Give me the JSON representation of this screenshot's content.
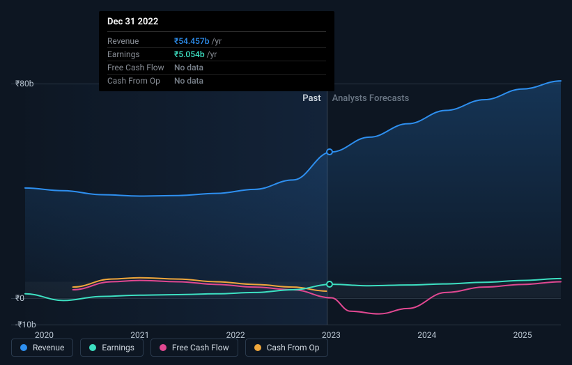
{
  "chart": {
    "background_color": "#0d1622",
    "grid_color": "#2a3644",
    "text_color": "#b8c4d0",
    "currency_prefix": "₹",
    "y_axis": {
      "ticks": [
        {
          "value": 80,
          "label": "₹80b"
        },
        {
          "value": 0,
          "label": "₹0"
        },
        {
          "value": -10,
          "label": "-₹10b"
        }
      ],
      "min": -10,
      "max": 80
    },
    "x_axis": {
      "min": 2019.8,
      "max": 2025.4,
      "ticks": [
        2020,
        2021,
        2022,
        2023,
        2024,
        2025
      ],
      "divider_at": 2022.95
    },
    "sections": {
      "past": {
        "label": "Past",
        "color": "#d4dce4"
      },
      "forecast": {
        "label": "Analysts Forecasts",
        "color": "#6a7684"
      }
    },
    "series": [
      {
        "key": "revenue",
        "label": "Revenue",
        "color": "#2e8fef",
        "line_width": 2,
        "fill_opacity": 0.15,
        "points": [
          [
            2019.8,
            41
          ],
          [
            2020.2,
            40
          ],
          [
            2020.6,
            38.5
          ],
          [
            2021.0,
            38
          ],
          [
            2021.4,
            38.2
          ],
          [
            2021.8,
            39
          ],
          [
            2022.2,
            40.5
          ],
          [
            2022.6,
            44
          ],
          [
            2023.0,
            54.457
          ],
          [
            2023.4,
            60
          ],
          [
            2023.8,
            65
          ],
          [
            2024.2,
            70
          ],
          [
            2024.6,
            74
          ],
          [
            2025.0,
            78
          ],
          [
            2025.4,
            81
          ]
        ]
      },
      {
        "key": "earnings",
        "label": "Earnings",
        "color": "#3de0c2",
        "line_width": 2,
        "fill_opacity": 0,
        "points": [
          [
            2019.8,
            1.5
          ],
          [
            2020.2,
            -1
          ],
          [
            2020.6,
            0.5
          ],
          [
            2021.0,
            1
          ],
          [
            2021.4,
            1.2
          ],
          [
            2021.8,
            1.5
          ],
          [
            2022.2,
            2
          ],
          [
            2022.6,
            3
          ],
          [
            2023.0,
            5.054
          ],
          [
            2023.4,
            4.5
          ],
          [
            2023.8,
            4.8
          ],
          [
            2024.2,
            5.2
          ],
          [
            2024.6,
            5.8
          ],
          [
            2025.0,
            6.5
          ],
          [
            2025.4,
            7.2
          ]
        ]
      },
      {
        "key": "fcf",
        "label": "Free Cash Flow",
        "color": "#e04891",
        "line_width": 2,
        "fill_opacity": 0,
        "points": [
          [
            2020.3,
            3
          ],
          [
            2020.7,
            6
          ],
          [
            2021.0,
            6.5
          ],
          [
            2021.4,
            6
          ],
          [
            2021.8,
            5
          ],
          [
            2022.2,
            4
          ],
          [
            2022.6,
            3
          ],
          [
            2023.0,
            0
          ],
          [
            2023.2,
            -5
          ],
          [
            2023.5,
            -6
          ],
          [
            2023.8,
            -4
          ],
          [
            2024.2,
            2
          ],
          [
            2024.6,
            4
          ],
          [
            2025.0,
            5
          ],
          [
            2025.4,
            6
          ]
        ]
      },
      {
        "key": "cfo",
        "label": "Cash From Op",
        "color": "#f0a73c",
        "line_width": 2,
        "fill_opacity": 0,
        "points": [
          [
            2020.3,
            4
          ],
          [
            2020.7,
            7
          ],
          [
            2021.0,
            7.5
          ],
          [
            2021.4,
            7
          ],
          [
            2021.8,
            6
          ],
          [
            2022.2,
            5
          ],
          [
            2022.6,
            4
          ],
          [
            2022.95,
            2.5
          ]
        ]
      }
    ],
    "marker": {
      "x": 2022.98,
      "points": [
        {
          "series": "revenue",
          "y": 54.457,
          "color": "#2e8fef"
        },
        {
          "series": "earnings",
          "y": 5.054,
          "color": "#3de0c2"
        }
      ]
    }
  },
  "tooltip": {
    "title": "Dec 31 2022",
    "rows": [
      {
        "key": "Revenue",
        "value": "₹54.457b",
        "unit": "/yr",
        "color": "#2e8fef"
      },
      {
        "key": "Earnings",
        "value": "₹5.054b",
        "unit": "/yr",
        "color": "#3de0c2"
      },
      {
        "key": "Free Cash Flow",
        "value": "No data",
        "unit": "",
        "color": "#7a828c"
      },
      {
        "key": "Cash From Op",
        "value": "No data",
        "unit": "",
        "color": "#7a828c"
      }
    ]
  },
  "legend": [
    {
      "key": "revenue",
      "label": "Revenue",
      "color": "#2e8fef"
    },
    {
      "key": "earnings",
      "label": "Earnings",
      "color": "#3de0c2"
    },
    {
      "key": "fcf",
      "label": "Free Cash Flow",
      "color": "#e04891"
    },
    {
      "key": "cfo",
      "label": "Cash From Op",
      "color": "#f0a73c"
    }
  ]
}
